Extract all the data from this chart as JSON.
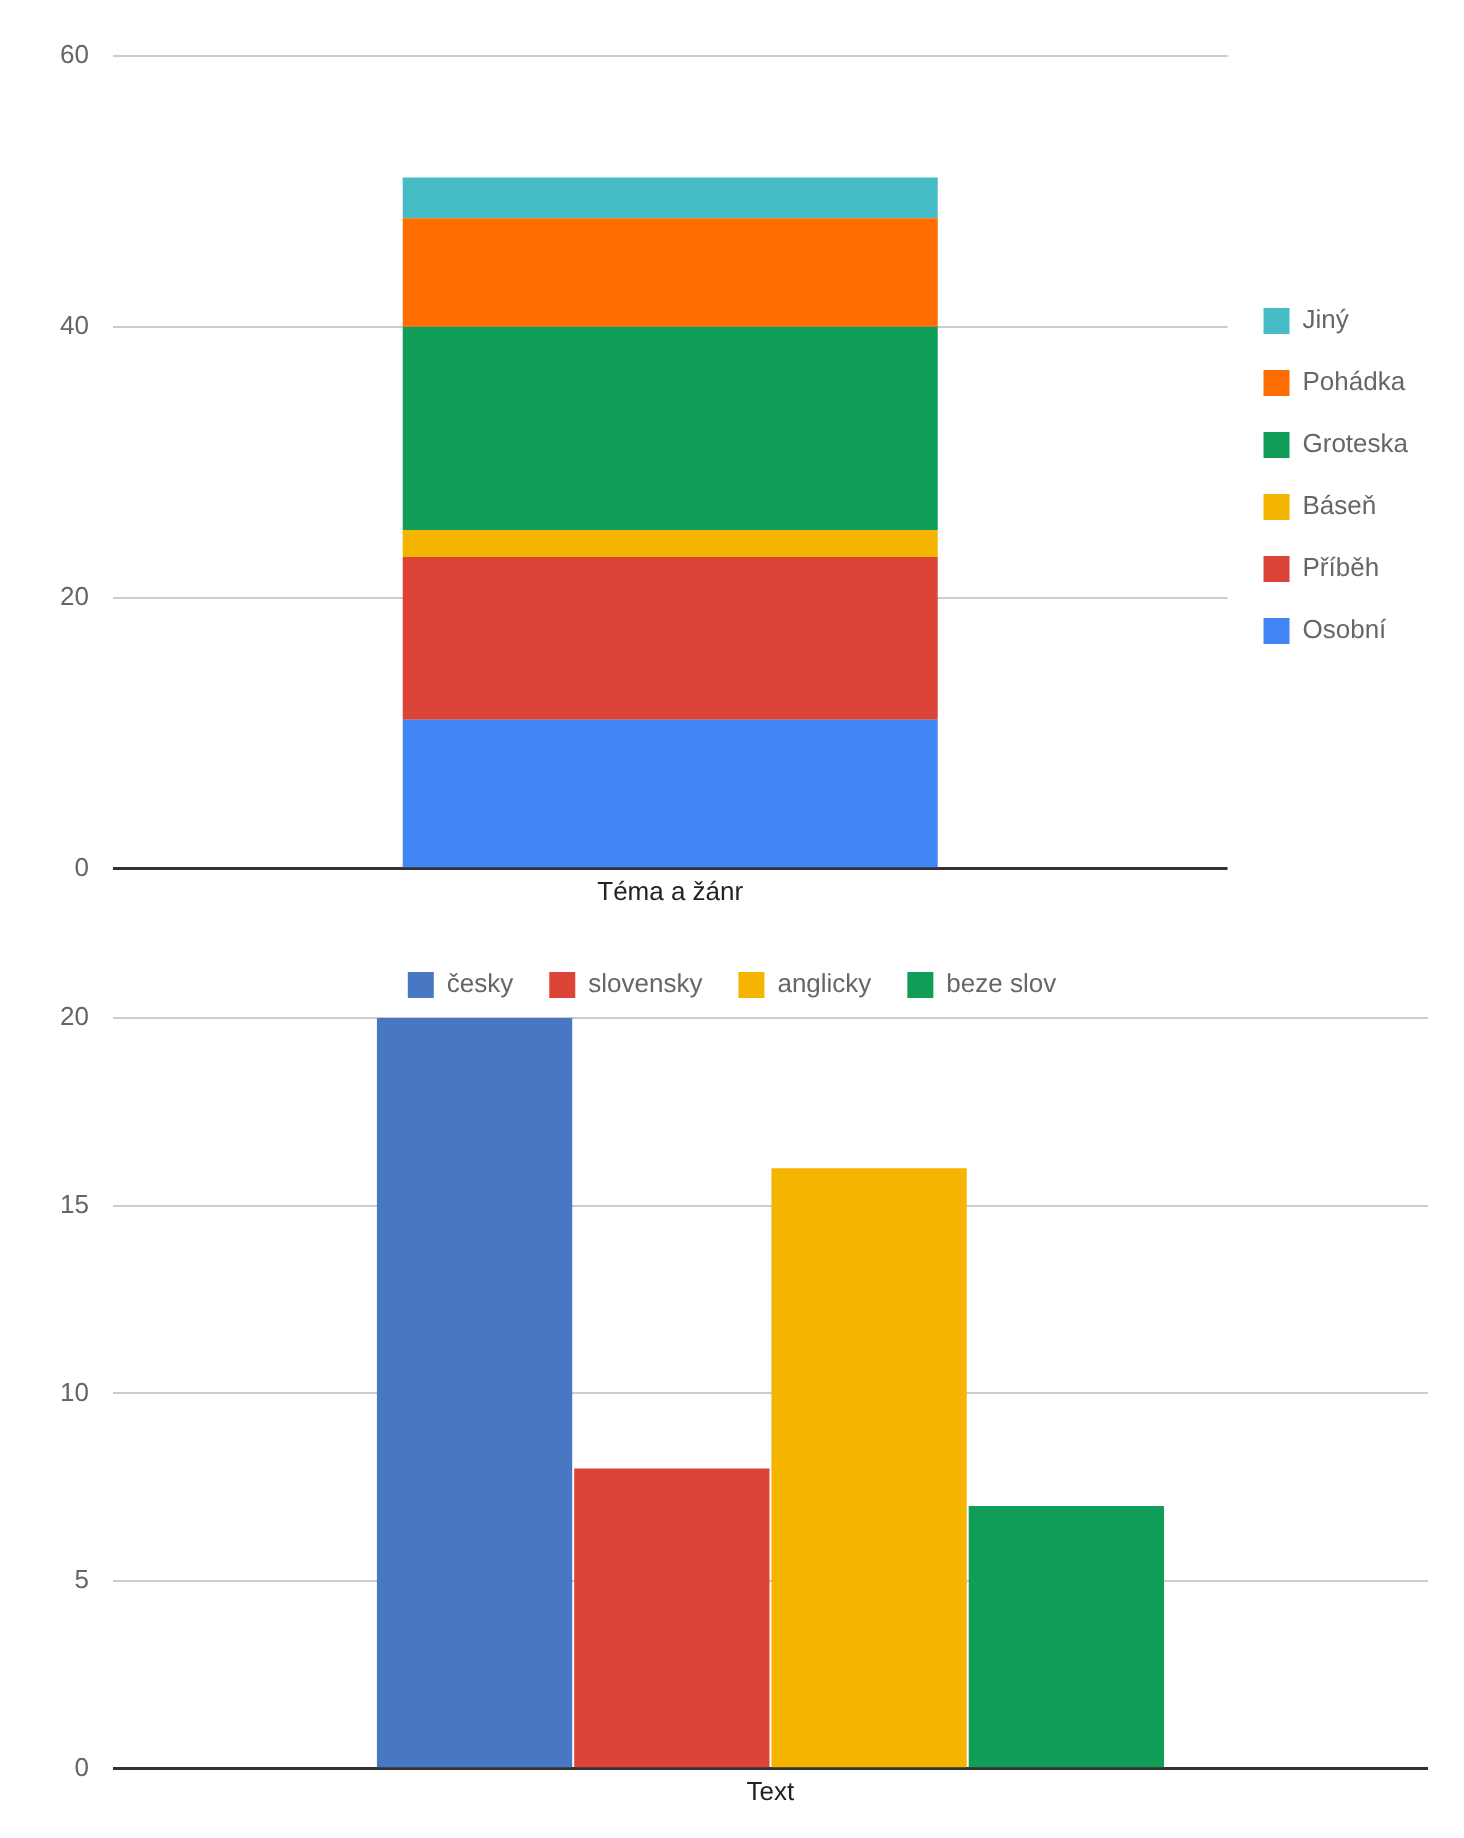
{
  "chart_data": [
    {
      "type": "bar",
      "xlabel": "Téma a žánr",
      "categories": [
        null
      ],
      "stacked": true,
      "ylim": [
        0,
        60
      ],
      "yticks": [
        0,
        20,
        40,
        60
      ],
      "grid": "y",
      "legend": "right",
      "series": [
        {
          "name": "Osobní",
          "color": "#4285f4",
          "values": [
            11
          ]
        },
        {
          "name": "Příběh",
          "color": "#db4437",
          "values": [
            12
          ]
        },
        {
          "name": "Báseň",
          "color": "#f4b400",
          "values": [
            2
          ]
        },
        {
          "name": "Groteska",
          "color": "#0f9d58",
          "values": [
            15
          ]
        },
        {
          "name": "Pohádka",
          "color": "#ff6d00",
          "values": [
            8
          ]
        },
        {
          "name": "Jiný",
          "color": "#46bdc6",
          "values": [
            3
          ]
        }
      ]
    },
    {
      "type": "bar",
      "xlabel": "Text",
      "categories": [
        null
      ],
      "ylim": [
        0,
        20
      ],
      "yticks": [
        0,
        5,
        10,
        15,
        20
      ],
      "grid": "y",
      "legend": "top",
      "series": [
        {
          "name": "česky",
          "color": "#4877c4",
          "values": [
            20
          ]
        },
        {
          "name": "slovensky",
          "color": "#db4437",
          "values": [
            8
          ]
        },
        {
          "name": "anglicky",
          "color": "#f4b400",
          "values": [
            16
          ]
        },
        {
          "name": "beze slov",
          "color": "#0f9d58",
          "values": [
            7
          ]
        }
      ]
    }
  ]
}
